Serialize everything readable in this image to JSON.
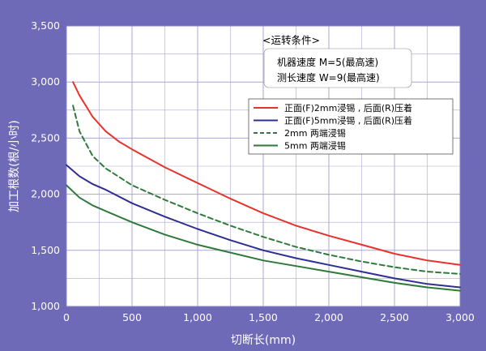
{
  "colors": {
    "background": "#6f6ab8",
    "plot_bg": "#ffffff",
    "grid": "#a9a7d6",
    "axis_text": "#ffffff"
  },
  "annotation": {
    "title": "<运转条件>",
    "line1": "机器速度 M=5(最高速)",
    "line2": "测长速度 W=9(最高速)"
  },
  "chart_data": {
    "type": "line",
    "xlabel": "切断长(mm)",
    "ylabel": "加工根数(根/小时)",
    "xlim": [
      0,
      3000
    ],
    "ylim": [
      1000,
      3500
    ],
    "xticks": [
      0,
      500,
      1000,
      1500,
      2000,
      2500,
      3000
    ],
    "yticks": [
      1000,
      1500,
      2000,
      2500,
      3000,
      3500
    ],
    "xtick_labels": [
      "0",
      "500",
      "1,000",
      "1,500",
      "2,000",
      "2,500",
      "3,000"
    ],
    "ytick_labels": [
      "1,000",
      "1,500",
      "2,000",
      "2,500",
      "3,000",
      "3,500"
    ],
    "grid": true,
    "legend_position": "upper-right",
    "series": [
      {
        "name": "正面(F)2mm浸锡 , 后面(R)压着",
        "color": "#e8322c",
        "dash": "solid",
        "x": [
          50,
          100,
          200,
          300,
          400,
          500,
          750,
          1000,
          1250,
          1500,
          1750,
          2000,
          2250,
          2500,
          2750,
          3000
        ],
        "y": [
          3000,
          2880,
          2690,
          2560,
          2470,
          2400,
          2240,
          2100,
          1960,
          1830,
          1720,
          1630,
          1550,
          1470,
          1410,
          1370
        ]
      },
      {
        "name": "正面(F)5mm浸锡 , 后面(R)压着",
        "color": "#2e2f8f",
        "dash": "solid",
        "x": [
          0,
          100,
          200,
          300,
          500,
          750,
          1000,
          1250,
          1500,
          1750,
          2000,
          2250,
          2500,
          2750,
          3000
        ],
        "y": [
          2260,
          2160,
          2090,
          2040,
          1920,
          1800,
          1690,
          1590,
          1500,
          1430,
          1370,
          1310,
          1250,
          1200,
          1170
        ]
      },
      {
        "name": "2mm 两端浸锡",
        "color": "#2f7a3a",
        "dash": "dashed",
        "x": [
          50,
          100,
          200,
          300,
          500,
          750,
          1000,
          1250,
          1500,
          1750,
          2000,
          2250,
          2500,
          2750,
          3000
        ],
        "y": [
          2790,
          2560,
          2340,
          2230,
          2080,
          1950,
          1830,
          1720,
          1620,
          1530,
          1460,
          1400,
          1350,
          1310,
          1290
        ]
      },
      {
        "name": "5mm 两端浸锡",
        "color": "#2f7a3a",
        "dash": "solid",
        "x": [
          0,
          100,
          200,
          300,
          500,
          750,
          1000,
          1250,
          1500,
          1750,
          2000,
          2250,
          2500,
          2750,
          3000
        ],
        "y": [
          2080,
          1970,
          1900,
          1850,
          1750,
          1640,
          1550,
          1480,
          1410,
          1360,
          1310,
          1260,
          1210,
          1170,
          1140
        ]
      }
    ]
  }
}
